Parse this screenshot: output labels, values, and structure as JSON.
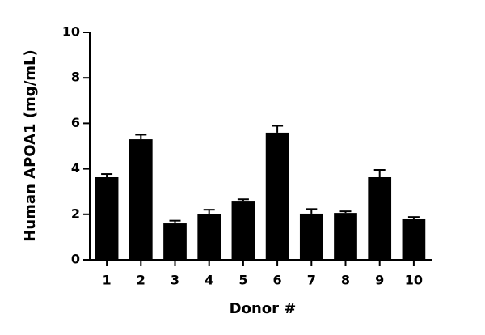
{
  "chart_data": {
    "type": "bar",
    "x_label": "Donor #",
    "y_label": "Human APOA1 (mg/mL)",
    "categories": [
      "1",
      "2",
      "3",
      "4",
      "5",
      "6",
      "7",
      "8",
      "9",
      "10"
    ],
    "values": [
      3.63,
      5.3,
      1.6,
      2.0,
      2.56,
      5.59,
      2.03,
      2.06,
      3.63,
      1.78
    ],
    "errors": [
      0.14,
      0.2,
      0.12,
      0.2,
      0.1,
      0.3,
      0.2,
      0.07,
      0.32,
      0.1
    ],
    "color": "#000000",
    "ylim": [
      0,
      10
    ],
    "yticks": [
      0,
      2,
      4,
      6,
      8,
      10
    ],
    "grid": false
  }
}
